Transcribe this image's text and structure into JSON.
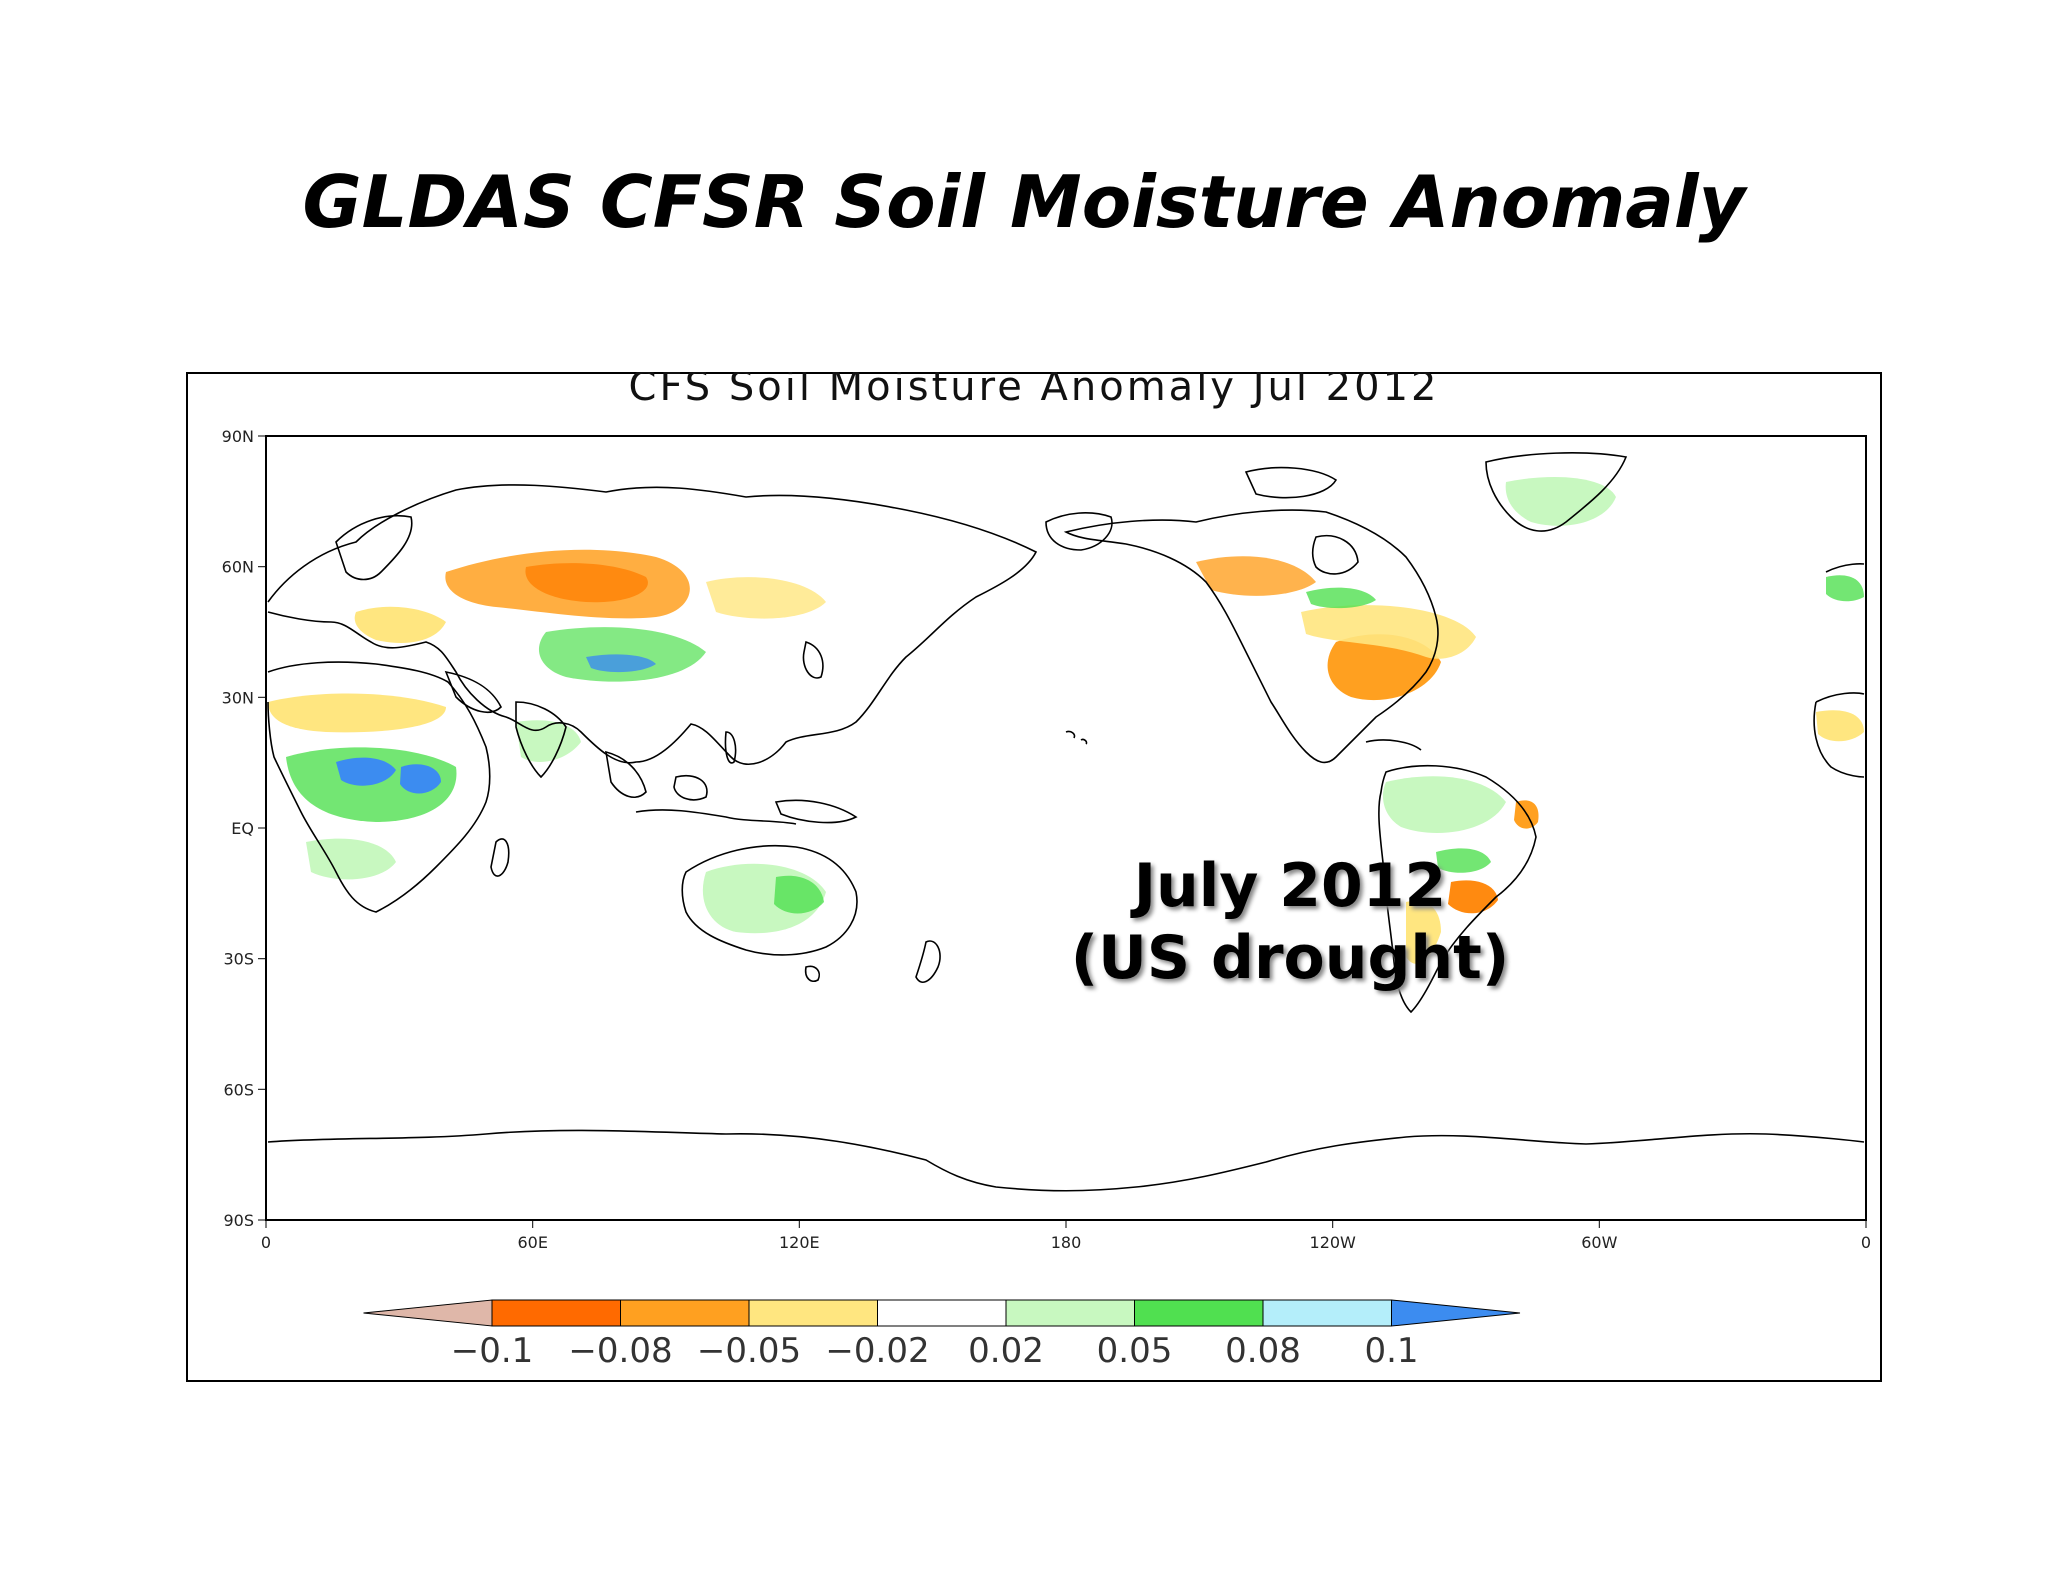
{
  "slide": {
    "title": "GLDAS CFSR Soil Moisture Anomaly"
  },
  "map": {
    "title": "CFS Soil Moisture Anomaly Jul 2012",
    "lat_labels": [
      "90N",
      "60N",
      "30N",
      "EQ",
      "30S",
      "60S",
      "90S"
    ],
    "lon_labels": [
      "0",
      "60E",
      "120E",
      "180",
      "120W",
      "60W",
      "0"
    ],
    "projection": "equirectangular, 0 to 360 longitude"
  },
  "annotation": {
    "line1": "July 2012",
    "line2": "(US drought)"
  },
  "colorbar": {
    "labels": [
      "−0.1",
      "−0.08",
      "−0.05",
      "−0.02",
      "0.02",
      "0.05",
      "0.08",
      "0.1"
    ],
    "colors": [
      "#dfb7a9",
      "#ff6a00",
      "#ffa020",
      "#ffe680",
      "#ffffff",
      "#c8f8c0",
      "#50e050",
      "#b4eefa",
      "#3c8cf0"
    ]
  },
  "palette": {
    "dry_strong": "#ff6a00",
    "dry": "#ffa020",
    "dry_weak": "#ffe680",
    "wet_weak": "#c8f8c0",
    "wet": "#50e050",
    "wet_strong": "#b4eefa",
    "wet_extreme": "#3c8cf0"
  }
}
